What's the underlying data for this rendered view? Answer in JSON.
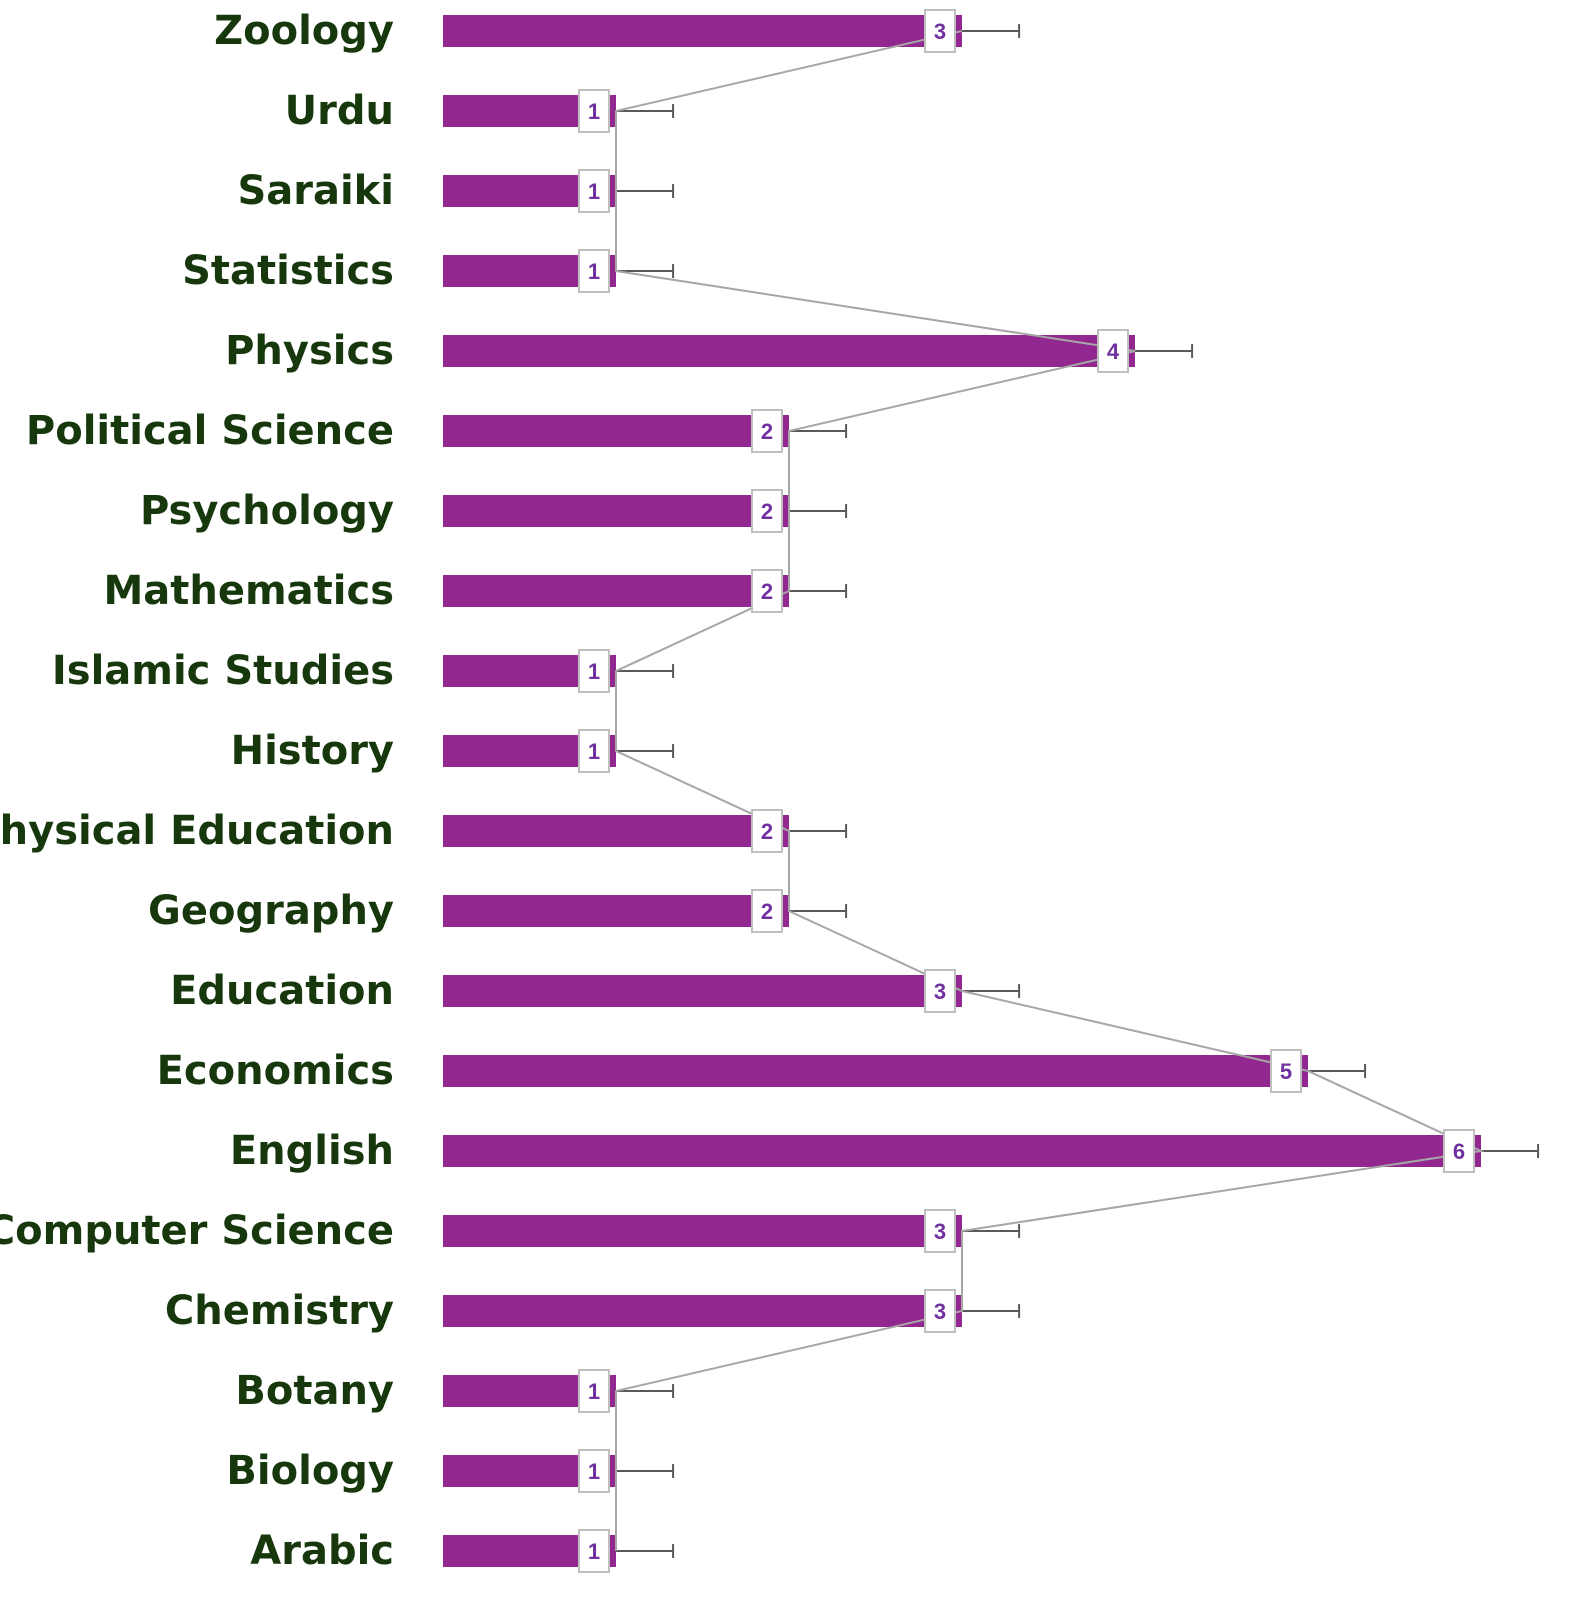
{
  "chart_data": {
    "type": "bar",
    "orientation": "horizontal",
    "categories": [
      "Zoology",
      "Urdu",
      "Saraiki",
      "Statistics",
      "Physics",
      "Political Science",
      "Psychology",
      "Mathematics",
      "Islamic Studies",
      "History",
      "Physical Education",
      "Geography",
      "Education",
      "Economics",
      "English",
      "Computer Science",
      "Chemistry",
      "Botany",
      "Biology",
      "Arabic"
    ],
    "values": [
      3,
      1,
      1,
      1,
      4,
      2,
      2,
      2,
      1,
      1,
      2,
      2,
      3,
      5,
      6,
      3,
      3,
      1,
      1,
      1
    ],
    "errors": [
      0.33,
      0.33,
      0.33,
      0.33,
      0.33,
      0.33,
      0.33,
      0.33,
      0.33,
      0.33,
      0.33,
      0.33,
      0.33,
      0.33,
      0.33,
      0.33,
      0.33,
      0.33,
      0.33,
      0.33
    ],
    "color": "#92278f",
    "label_color": "#7030a0",
    "category_color": "#17380d",
    "line_color": "#a6a6a6"
  }
}
